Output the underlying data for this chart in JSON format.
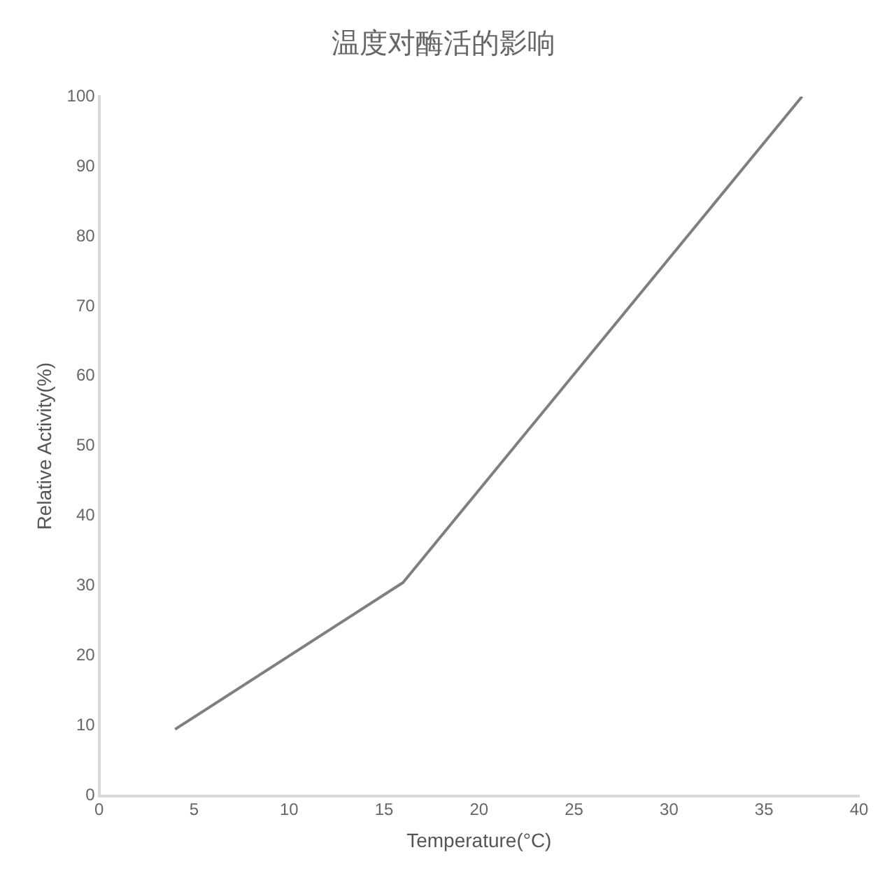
{
  "chart_data": {
    "type": "line",
    "title": "温度对酶活的影响",
    "xlabel": "Temperature(°C)",
    "ylabel": "Relative Activity(%)",
    "x": [
      4,
      16,
      37
    ],
    "series": [
      {
        "color": "#7f7f7f",
        "values": [
          9.5,
          30.5,
          100
        ]
      }
    ],
    "xlim": [
      0,
      40
    ],
    "xticks": [
      0,
      5,
      10,
      15,
      20,
      25,
      30,
      35,
      40
    ],
    "ylim": [
      0,
      100
    ],
    "yticks": [
      0,
      10,
      20,
      30,
      40,
      50,
      60,
      70,
      80,
      90,
      100
    ],
    "grid": false,
    "legend": false,
    "marker": "none",
    "line_style": "solid"
  }
}
